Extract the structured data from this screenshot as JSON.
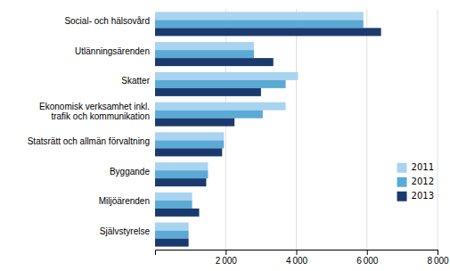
{
  "chart_data": {
    "type": "bar",
    "orientation": "horizontal",
    "categories": [
      "Social- och hälsovård",
      "Utlänningsärenden",
      "Skatter",
      "Ekonomisk verksamhet inkl.\ntrafik och kommunikation",
      "Statsrätt och allmän förvaltning",
      "Byggande",
      "Miljöärenden",
      "Självstyrelse"
    ],
    "series": [
      {
        "name": "2011",
        "color": "#a8d4f0",
        "values": [
          5900,
          2800,
          4050,
          3700,
          1950,
          1500,
          1050,
          950
        ]
      },
      {
        "name": "2012",
        "color": "#5baad6",
        "values": [
          5900,
          2800,
          3700,
          3050,
          1950,
          1500,
          1050,
          950
        ]
      },
      {
        "name": "2013",
        "color": "#1a3a6e",
        "values": [
          6400,
          3350,
          3000,
          2250,
          1900,
          1450,
          1250,
          950
        ]
      }
    ],
    "xlim": [
      0,
      8000
    ],
    "xticks": [
      {
        "value": 2000,
        "label": "2 000"
      },
      {
        "value": 4000,
        "label": "4 000"
      },
      {
        "value": 6000,
        "label": "6 000"
      },
      {
        "value": 8000,
        "label": "8 000"
      }
    ],
    "grid": true,
    "legend": "right"
  }
}
